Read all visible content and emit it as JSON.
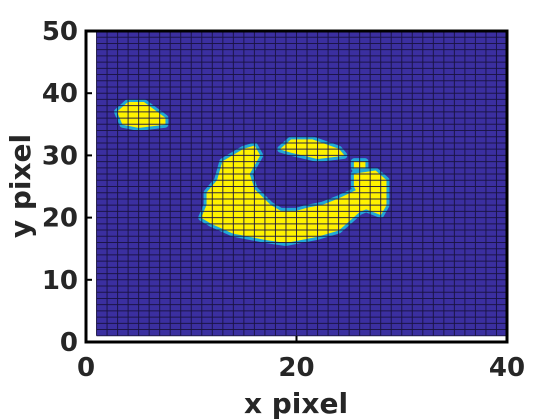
{
  "chart_data": {
    "type": "heatmap",
    "title": "",
    "xlabel": "x pixel",
    "ylabel": "y pixel",
    "xlim": [
      0,
      40
    ],
    "ylim": [
      0,
      50
    ],
    "x_ticks": [
      "0",
      "20",
      "40"
    ],
    "y_ticks": [
      "0",
      "10",
      "20",
      "30",
      "40",
      "50"
    ],
    "x_tick_values": [
      0,
      20,
      40
    ],
    "y_tick_values": [
      0,
      10,
      20,
      30,
      40,
      50
    ],
    "grid_columns": 40,
    "grid_rows": 49,
    "grid_origin": [
      1,
      1
    ],
    "background_value": 0,
    "colors": {
      "low": "#3b2fa0",
      "edge": "#22a8d8",
      "high": "#fff200",
      "grid_line": "#1a1340",
      "axis": "#000000"
    },
    "bright_regions": [
      {
        "name": "small blob",
        "value": 1,
        "outline": [
          [
            3,
            37
          ],
          [
            4,
            38.5
          ],
          [
            5.5,
            38.5
          ],
          [
            7.5,
            36
          ],
          [
            7.5,
            35
          ],
          [
            5,
            34.5
          ],
          [
            3.5,
            35
          ]
        ]
      },
      {
        "name": "ring left",
        "value": 1,
        "outline": [
          [
            15,
            31
          ],
          [
            16,
            31.5
          ],
          [
            16.5,
            30
          ],
          [
            15.5,
            27
          ],
          [
            16,
            24.5
          ],
          [
            17.5,
            22
          ],
          [
            18.5,
            21
          ],
          [
            20,
            21
          ],
          [
            21,
            21.5
          ],
          [
            22.5,
            22
          ],
          [
            24,
            23
          ],
          [
            26.5,
            25
          ],
          [
            27.5,
            25
          ],
          [
            27.5,
            22
          ],
          [
            26,
            21
          ],
          [
            25,
            19.5
          ],
          [
            24,
            18
          ],
          [
            22,
            17
          ],
          [
            19,
            16
          ],
          [
            17,
            16.5
          ],
          [
            14,
            17.5
          ],
          [
            12,
            19
          ],
          [
            11,
            20
          ],
          [
            11.5,
            22
          ],
          [
            11.5,
            24
          ],
          [
            12.5,
            26
          ],
          [
            13,
            29
          ]
        ]
      },
      {
        "name": "ring right",
        "value": 1,
        "outline": [
          [
            25.5,
            27
          ],
          [
            27.5,
            27.5
          ],
          [
            28.5,
            26
          ],
          [
            28.5,
            22
          ],
          [
            28,
            20.5
          ],
          [
            26.5,
            21.5
          ],
          [
            26,
            23.5
          ],
          [
            25.5,
            25
          ]
        ]
      },
      {
        "name": "ring top arc",
        "value": 1,
        "outline": [
          [
            18.5,
            31
          ],
          [
            19.5,
            32.5
          ],
          [
            21.5,
            32.5
          ],
          [
            24,
            31
          ],
          [
            24.5,
            30
          ],
          [
            22,
            29.5
          ],
          [
            19.5,
            30.5
          ]
        ]
      },
      {
        "name": "speck",
        "value": 1,
        "outline": [
          [
            25.5,
            29
          ],
          [
            26.5,
            29
          ],
          [
            26.5,
            28
          ],
          [
            25.5,
            28
          ]
        ]
      }
    ]
  }
}
